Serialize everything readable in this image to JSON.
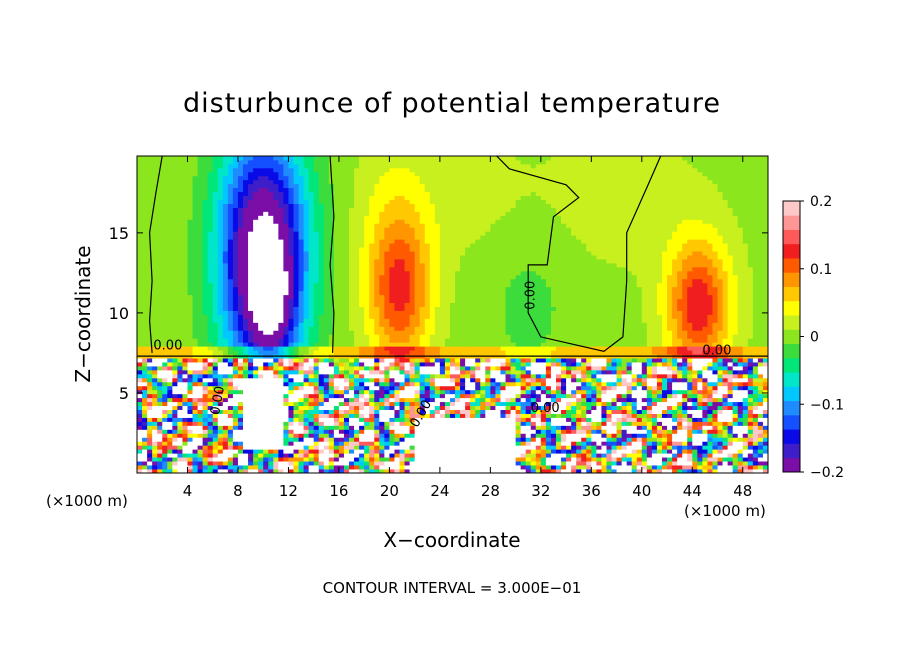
{
  "chart_data": {
    "type": "heatmap",
    "title": "disturbunce of potential temperature",
    "xlabel": "X−coordinate",
    "ylabel": "Z−coordinate",
    "x_unit_left": "(×1000 m)",
    "x_unit_right": "(×1000 m)",
    "footer": "CONTOUR INTERVAL = 3.000E−01",
    "xlim": [
      0,
      50
    ],
    "ylim": [
      0,
      19.8
    ],
    "x_ticks": [
      {
        "v": 4,
        "label": "4"
      },
      {
        "v": 8,
        "label": "8"
      },
      {
        "v": 12,
        "label": "12"
      },
      {
        "v": 16,
        "label": "16"
      },
      {
        "v": 20,
        "label": "20"
      },
      {
        "v": 24,
        "label": "24"
      },
      {
        "v": 28,
        "label": "28"
      },
      {
        "v": 32,
        "label": "32"
      },
      {
        "v": 36,
        "label": "36"
      },
      {
        "v": 40,
        "label": "40"
      },
      {
        "v": 44,
        "label": "44"
      },
      {
        "v": 48,
        "label": "48"
      }
    ],
    "y_ticks": [
      {
        "v": 5,
        "label": "5"
      },
      {
        "v": 10,
        "label": "10"
      },
      {
        "v": 15,
        "label": "15"
      }
    ],
    "colorbar": {
      "min": -0.2,
      "max": 0.2,
      "ticks": [
        {
          "v": 0.2,
          "label": "0.2"
        },
        {
          "v": 0.1,
          "label": "0.1"
        },
        {
          "v": 0,
          "label": "0"
        },
        {
          "v": -0.1,
          "label": "−0.1"
        },
        {
          "v": -0.2,
          "label": "−0.2"
        }
      ],
      "colors": [
        "#7b0ea6",
        "#3d1ec8",
        "#0a0ae6",
        "#1450ff",
        "#1e8cff",
        "#00c8ff",
        "#00e6c8",
        "#00e678",
        "#3cdc3c",
        "#8ce61e",
        "#c8f01e",
        "#ffff00",
        "#ffc800",
        "#ff9600",
        "#ff5a00",
        "#f01e1e",
        "#ff5a5a",
        "#ff9696",
        "#ffc8c8"
      ]
    },
    "contour_labels": [
      {
        "x": 1.3,
        "y": 7.7,
        "text": "0.00"
      },
      {
        "x": 31.5,
        "y": 10.2,
        "text": "0.00",
        "rotate": -90
      },
      {
        "x": 44.8,
        "y": 7.4,
        "text": "0.00"
      },
      {
        "x": 31.2,
        "y": 3.8,
        "text": "0.00"
      },
      {
        "x": 22.2,
        "y": 2.8,
        "text": "0.00",
        "rotate": -60
      },
      {
        "x": 6.5,
        "y": 3.6,
        "text": "0.00",
        "rotate": -80
      }
    ],
    "upper_features": [
      {
        "x": 10,
        "z": 13.5,
        "sx": 3.5,
        "sz": 7.5,
        "a": -0.25
      },
      {
        "x": 10.6,
        "z": 10.5,
        "sx": 1.6,
        "sz": 3.5,
        "a": -0.09
      },
      {
        "x": 20.8,
        "z": 11.2,
        "sx": 2.5,
        "sz": 4.5,
        "a": 0.11
      },
      {
        "x": 20.5,
        "z": 16,
        "sx": 3,
        "sz": 5,
        "a": 0.03
      },
      {
        "x": 44.5,
        "z": 10.5,
        "sx": 2.5,
        "sz": 4,
        "a": 0.13
      },
      {
        "x": 31,
        "z": 11,
        "sx": 4,
        "sz": 6,
        "a": -0.02
      },
      {
        "x": 27,
        "z": 17,
        "sx": 5,
        "sz": 4,
        "a": 0.015
      },
      {
        "x": 38,
        "z": 17,
        "sx": 6,
        "sz": 4,
        "a": 0.02
      }
    ]
  }
}
